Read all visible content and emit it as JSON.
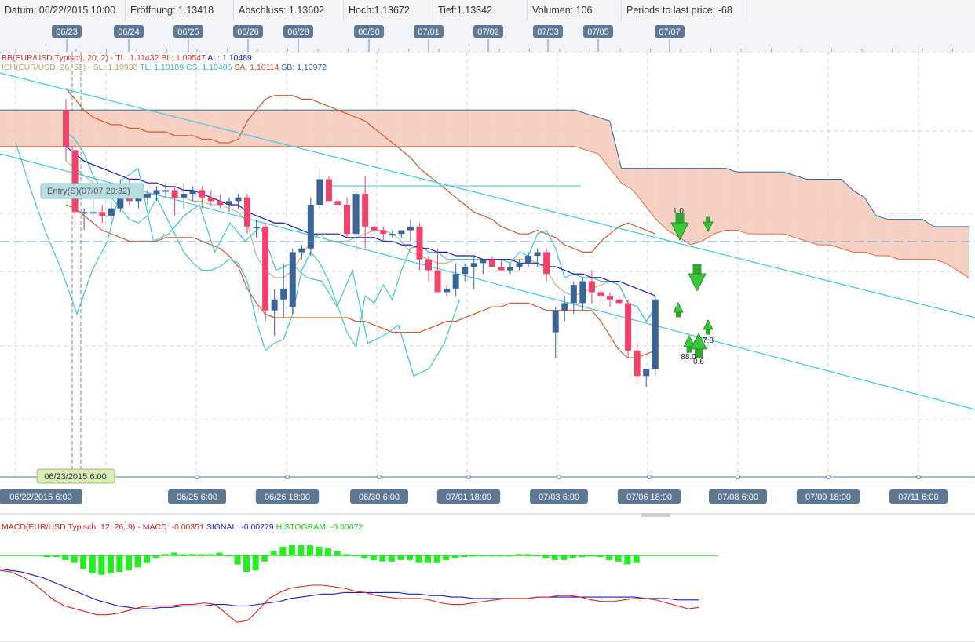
{
  "info": {
    "datum": "Datum: 06/22/2015 10:00",
    "open": "Eröffnung: 1.13418",
    "close": "Abschluss: 1.13602",
    "high": "Hoch:1.13672",
    "low": "Tief:1.13342",
    "volume": "Volumen: 106",
    "periods": "Periods to last price: -68"
  },
  "colors": {
    "bull": "#3a6496",
    "bear": "#f0426a",
    "bb": "#d05a28",
    "sma": "#1a1ab8",
    "cyan": "#3fc6cf",
    "khaki": "#c8b48a",
    "channel": "#3cc8e8",
    "macd": "#e02020",
    "signal": "#1a1ac8",
    "hist": "#22ee22",
    "cloud_red": "#f4c8b8",
    "cloud_blue": "#bcdcee"
  },
  "top_dates": [
    "06/23",
    "06/24",
    "06/25",
    "06/26",
    "06/28",
    "06/30",
    "07/01",
    "07/02",
    "07/03",
    "07/05",
    "07/07"
  ],
  "bottom_dates": [
    "06/22/2015 6:00",
    "06/25 6:00",
    "06/26 18:00",
    "06/30 6:00",
    "07/01 18:00",
    "07/03 6:00",
    "07/06 18:00",
    "07/08 6:00",
    "07/09 18:00",
    "07/11 6:00"
  ],
  "cursor_label": "06/23/2015 6:00",
  "entry_label": "Entry(S)(07/07 20:32)",
  "legend": {
    "bb": {
      "part1": "BB(EUR/USD.Typisch, 20, 2) - TL: 1.11432 BL: 1.09547",
      "part2": "AL: 1.10489"
    },
    "ich": {
      "part1": "ICH(EUR/USD, 26, 52) - SL: 1.10938",
      "part2": "TL: 1.10189",
      "part3": "CS: 1.10406",
      "part4": "SA: 1.10114",
      "part5": "SB: 1.10972"
    },
    "macd": {
      "part1": "MACD(EUR/USD.Typisch, 12, 26, 9) - MACD: -0.00351",
      "part2": "SIGNAL: -0.00279",
      "part3": "HISTOGRAM: -0.00072"
    }
  },
  "signal_labels": [
    "1.0",
    "88.0",
    "0.6",
    "7.8"
  ],
  "chart_data": {
    "type": "candlestick",
    "candles": [
      {
        "o": 1.134,
        "h": 1.137,
        "l": 1.12,
        "c": 1.124
      },
      {
        "o": 1.123,
        "h": 1.125,
        "l": 1.102,
        "c": 1.106
      },
      {
        "o": 1.106,
        "h": 1.107,
        "l": 1.101,
        "c": 1.106
      },
      {
        "o": 1.106,
        "h": 1.11,
        "l": 1.104,
        "c": 1.106
      },
      {
        "o": 1.106,
        "h": 1.108,
        "l": 1.103,
        "c": 1.105
      },
      {
        "o": 1.105,
        "h": 1.109,
        "l": 1.104,
        "c": 1.107
      },
      {
        "o": 1.107,
        "h": 1.115,
        "l": 1.106,
        "c": 1.113
      },
      {
        "o": 1.113,
        "h": 1.115,
        "l": 1.108,
        "c": 1.109
      },
      {
        "o": 1.109,
        "h": 1.112,
        "l": 1.107,
        "c": 1.11
      },
      {
        "o": 1.11,
        "h": 1.112,
        "l": 1.108,
        "c": 1.111
      },
      {
        "o": 1.111,
        "h": 1.113,
        "l": 1.109,
        "c": 1.112
      },
      {
        "o": 1.112,
        "h": 1.114,
        "l": 1.11,
        "c": 1.112
      },
      {
        "o": 1.112,
        "h": 1.113,
        "l": 1.105,
        "c": 1.11
      },
      {
        "o": 1.11,
        "h": 1.114,
        "l": 1.107,
        "c": 1.111
      },
      {
        "o": 1.111,
        "h": 1.113,
        "l": 1.109,
        "c": 1.112
      },
      {
        "o": 1.112,
        "h": 1.113,
        "l": 1.107,
        "c": 1.11
      },
      {
        "o": 1.11,
        "h": 1.112,
        "l": 1.108,
        "c": 1.109
      },
      {
        "o": 1.109,
        "h": 1.111,
        "l": 1.107,
        "c": 1.108
      },
      {
        "o": 1.108,
        "h": 1.11,
        "l": 1.106,
        "c": 1.109
      },
      {
        "o": 1.109,
        "h": 1.111,
        "l": 1.107,
        "c": 1.11
      },
      {
        "o": 1.11,
        "h": 1.111,
        "l": 1.1,
        "c": 1.102
      },
      {
        "o": 1.102,
        "h": 1.104,
        "l": 1.099,
        "c": 1.102
      },
      {
        "o": 1.102,
        "h": 1.103,
        "l": 1.076,
        "c": 1.079
      },
      {
        "o": 1.079,
        "h": 1.085,
        "l": 1.072,
        "c": 1.082
      },
      {
        "o": 1.082,
        "h": 1.092,
        "l": 1.077,
        "c": 1.085
      },
      {
        "o": 1.08,
        "h": 1.096,
        "l": 1.078,
        "c": 1.095
      },
      {
        "o": 1.095,
        "h": 1.097,
        "l": 1.093,
        "c": 1.096
      },
      {
        "o": 1.096,
        "h": 1.11,
        "l": 1.094,
        "c": 1.108
      },
      {
        "o": 1.108,
        "h": 1.118,
        "l": 1.107,
        "c": 1.115
      },
      {
        "o": 1.115,
        "h": 1.116,
        "l": 1.109,
        "c": 1.109
      },
      {
        "o": 1.109,
        "h": 1.11,
        "l": 1.106,
        "c": 1.108
      },
      {
        "o": 1.108,
        "h": 1.11,
        "l": 1.099,
        "c": 1.1
      },
      {
        "o": 1.1,
        "h": 1.112,
        "l": 1.095,
        "c": 1.111
      },
      {
        "o": 1.111,
        "h": 1.116,
        "l": 1.096,
        "c": 1.102
      },
      {
        "o": 1.102,
        "h": 1.103,
        "l": 1.1,
        "c": 1.101
      },
      {
        "o": 1.101,
        "h": 1.102,
        "l": 1.098,
        "c": 1.1
      },
      {
        "o": 1.1,
        "h": 1.101,
        "l": 1.099,
        "c": 1.1
      },
      {
        "o": 1.1,
        "h": 1.101,
        "l": 1.099,
        "c": 1.101
      },
      {
        "o": 1.101,
        "h": 1.104,
        "l": 1.098,
        "c": 1.102
      },
      {
        "o": 1.102,
        "h": 1.103,
        "l": 1.09,
        "c": 1.093
      },
      {
        "o": 1.093,
        "h": 1.094,
        "l": 1.087,
        "c": 1.09
      },
      {
        "o": 1.09,
        "h": 1.096,
        "l": 1.085,
        "c": 1.084
      },
      {
        "o": 1.084,
        "h": 1.086,
        "l": 1.083,
        "c": 1.085
      },
      {
        "o": 1.085,
        "h": 1.092,
        "l": 1.083,
        "c": 1.089
      },
      {
        "o": 1.089,
        "h": 1.092,
        "l": 1.087,
        "c": 1.091
      },
      {
        "o": 1.091,
        "h": 1.094,
        "l": 1.085,
        "c": 1.092
      },
      {
        "o": 1.092,
        "h": 1.093,
        "l": 1.089,
        "c": 1.093
      },
      {
        "o": 1.093,
        "h": 1.094,
        "l": 1.091,
        "c": 1.091
      },
      {
        "o": 1.091,
        "h": 1.093,
        "l": 1.09,
        "c": 1.09
      },
      {
        "o": 1.09,
        "h": 1.092,
        "l": 1.089,
        "c": 1.091
      },
      {
        "o": 1.091,
        "h": 1.093,
        "l": 1.09,
        "c": 1.092
      },
      {
        "o": 1.092,
        "h": 1.095,
        "l": 1.091,
        "c": 1.094
      },
      {
        "o": 1.094,
        "h": 1.096,
        "l": 1.091,
        "c": 1.095
      },
      {
        "o": 1.095,
        "h": 1.096,
        "l": 1.087,
        "c": 1.089
      },
      {
        "o": 1.073,
        "h": 1.08,
        "l": 1.066,
        "c": 1.079
      },
      {
        "o": 1.079,
        "h": 1.083,
        "l": 1.076,
        "c": 1.081
      },
      {
        "o": 1.081,
        "h": 1.087,
        "l": 1.078,
        "c": 1.086
      },
      {
        "o": 1.081,
        "h": 1.088,
        "l": 1.079,
        "c": 1.087
      },
      {
        "o": 1.087,
        "h": 1.09,
        "l": 1.081,
        "c": 1.084
      },
      {
        "o": 1.084,
        "h": 1.085,
        "l": 1.081,
        "c": 1.083
      },
      {
        "o": 1.083,
        "h": 1.084,
        "l": 1.08,
        "c": 1.082
      },
      {
        "o": 1.082,
        "h": 1.083,
        "l": 1.08,
        "c": 1.081
      },
      {
        "o": 1.081,
        "h": 1.082,
        "l": 1.066,
        "c": 1.068
      },
      {
        "o": 1.068,
        "h": 1.07,
        "l": 1.059,
        "c": 1.061
      },
      {
        "o": 1.061,
        "h": 1.063,
        "l": 1.058,
        "c": 1.063
      },
      {
        "o": 1.063,
        "h": 1.083,
        "l": 1.061,
        "c": 1.082
      }
    ],
    "sma": [
      1.124,
      1.122,
      1.12,
      1.119,
      1.118,
      1.117,
      1.116,
      1.115,
      1.115,
      1.114,
      1.114,
      1.113,
      1.113,
      1.112,
      1.112,
      1.111,
      1.11,
      1.109,
      1.108,
      1.108,
      1.106,
      1.105,
      1.104,
      1.103,
      1.103,
      1.102,
      1.101,
      1.1,
      1.1,
      1.1,
      1.1,
      1.099,
      1.099,
      1.099,
      1.099,
      1.098,
      1.098,
      1.097,
      1.097,
      1.096,
      1.096,
      1.095,
      1.095,
      1.094,
      1.094,
      1.094,
      1.093,
      1.093,
      1.093,
      1.093,
      1.092,
      1.092,
      1.092,
      1.091,
      1.091,
      1.09,
      1.089,
      1.089,
      1.088,
      1.088,
      1.087,
      1.087,
      1.086,
      1.085,
      1.084,
      1.083
    ],
    "bb_upper": [
      1.14,
      1.137,
      1.134,
      1.132,
      1.131,
      1.13,
      1.13,
      1.129,
      1.129,
      1.128,
      1.128,
      1.128,
      1.127,
      1.127,
      1.127,
      1.126,
      1.126,
      1.125,
      1.125,
      1.126,
      1.131,
      1.134,
      1.137,
      1.138,
      1.138,
      1.138,
      1.137,
      1.137,
      1.136,
      1.135,
      1.134,
      1.133,
      1.132,
      1.131,
      1.129,
      1.127,
      1.125,
      1.123,
      1.121,
      1.118,
      1.116,
      1.114,
      1.112,
      1.11,
      1.108,
      1.106,
      1.105,
      1.104,
      1.102,
      1.101,
      1.1,
      1.1,
      1.101,
      1.1,
      1.099,
      1.097,
      1.096,
      1.095,
      1.095,
      1.098,
      1.1,
      1.102,
      1.103,
      1.102,
      1.101,
      1.1
    ],
    "bb_lower": [
      1.108,
      1.107,
      1.105,
      1.103,
      1.101,
      1.1,
      1.099,
      1.098,
      1.098,
      1.098,
      1.098,
      1.099,
      1.099,
      1.099,
      1.099,
      1.098,
      1.097,
      1.096,
      1.094,
      1.091,
      1.085,
      1.081,
      1.078,
      1.077,
      1.077,
      1.077,
      1.077,
      1.077,
      1.077,
      1.077,
      1.077,
      1.077,
      1.076,
      1.076,
      1.075,
      1.074,
      1.073,
      1.073,
      1.073,
      1.073,
      1.074,
      1.075,
      1.076,
      1.076,
      1.077,
      1.078,
      1.079,
      1.08,
      1.08,
      1.081,
      1.081,
      1.081,
      1.08,
      1.079,
      1.079,
      1.079,
      1.079,
      1.079,
      1.079,
      1.076,
      1.072,
      1.068,
      1.066,
      1.066,
      1.067,
      1.068
    ],
    "tenkan": [
      1.12,
      1.118,
      1.116,
      1.114,
      1.112,
      1.11,
      1.11,
      1.11,
      1.111,
      1.111,
      1.111,
      1.11,
      1.11,
      1.11,
      1.109,
      1.109,
      1.108,
      1.108,
      1.107,
      1.106,
      1.103,
      1.094,
      1.09,
      1.088,
      1.088,
      1.09,
      1.094,
      1.098,
      1.1,
      1.098,
      1.098,
      1.098,
      1.099,
      1.1,
      1.101,
      1.101,
      1.1,
      1.098,
      1.095,
      1.094,
      1.093,
      1.092,
      1.092,
      1.093,
      1.093,
      1.093,
      1.093,
      1.093,
      1.093,
      1.093,
      1.093,
      1.093,
      1.092,
      1.09,
      1.086,
      1.084,
      1.083,
      1.084,
      1.085,
      1.086,
      1.087,
      1.086,
      1.081,
      1.08,
      1.076,
      1.079
    ],
    "kijun": [
      1.128,
      1.126,
      1.122,
      1.116,
      1.112,
      1.11,
      1.107,
      1.104,
      1.103,
      1.105,
      1.11,
      1.105,
      1.1,
      1.095,
      1.092,
      1.09,
      1.09,
      1.091,
      1.093,
      1.092,
      1.087,
      1.076,
      1.068,
      1.07,
      1.071,
      1.078,
      1.09,
      1.095,
      1.092,
      1.087,
      1.08,
      1.073,
      1.069,
      1.083,
      1.081,
      1.086,
      1.082,
      1.09,
      1.096,
      1.097,
      1.095,
      1.095,
      1.093,
      1.093,
      1.093,
      1.093,
      1.093,
      1.093,
      1.093,
      1.092,
      1.095,
      1.094,
      1.1,
      1.101,
      1.096,
      1.088,
      1.089,
      1.088,
      1.088,
      1.087,
      1.087,
      1.086,
      1.081,
      1.08,
      1.076,
      1.08
    ],
    "cloud_a": [
      1.124,
      1.124,
      1.124,
      1.124,
      1.124,
      1.124,
      1.124,
      1.124,
      1.124,
      1.124,
      1.124,
      1.124,
      1.124,
      1.124,
      1.124,
      1.124,
      1.124,
      1.124,
      1.124,
      1.124,
      1.124,
      1.124,
      1.124,
      1.124,
      1.124,
      1.124,
      1.124,
      1.124,
      1.124,
      1.124,
      1.124,
      1.124,
      1.124,
      1.124,
      1.124,
      1.124,
      1.124,
      1.124,
      1.124,
      1.124,
      1.124,
      1.124,
      1.124,
      1.124,
      1.124,
      1.124,
      1.124,
      1.124,
      1.124,
      1.124,
      1.124,
      1.123,
      1.122,
      1.118,
      1.114,
      1.112,
      1.108,
      1.104,
      1.101,
      1.099,
      1.097,
      1.098,
      1.1,
      1.101,
      1.101,
      1.1,
      1.1,
      1.1,
      1.1,
      1.099,
      1.098,
      1.097,
      1.097,
      1.096,
      1.095,
      1.095,
      1.094,
      1.094,
      1.093,
      1.093,
      1.093,
      1.093,
      1.092,
      1.09,
      1.088
    ],
    "cloud_b": [
      1.134,
      1.134,
      1.134,
      1.134,
      1.134,
      1.134,
      1.134,
      1.134,
      1.134,
      1.134,
      1.134,
      1.134,
      1.134,
      1.134,
      1.134,
      1.134,
      1.134,
      1.134,
      1.134,
      1.134,
      1.134,
      1.134,
      1.134,
      1.134,
      1.134,
      1.134,
      1.134,
      1.134,
      1.134,
      1.134,
      1.134,
      1.134,
      1.134,
      1.134,
      1.134,
      1.134,
      1.134,
      1.134,
      1.134,
      1.134,
      1.134,
      1.134,
      1.134,
      1.134,
      1.134,
      1.134,
      1.134,
      1.134,
      1.134,
      1.134,
      1.134,
      1.133,
      1.132,
      1.131,
      1.118,
      1.118,
      1.118,
      1.118,
      1.118,
      1.118,
      1.118,
      1.118,
      1.118,
      1.118,
      1.117,
      1.117,
      1.117,
      1.117,
      1.117,
      1.116,
      1.115,
      1.115,
      1.115,
      1.115,
      1.112,
      1.11,
      1.105,
      1.104,
      1.104,
      1.104,
      1.104,
      1.102,
      1.102,
      1.102,
      1.102
    ],
    "chikou": [
      1.125,
      1.112,
      1.1,
      1.09,
      1.078,
      1.09,
      1.098,
      1.115,
      1.118,
      1.098,
      1.1,
      1.105,
      1.108,
      1.095,
      1.103,
      1.098,
      1.102,
      1.09,
      1.092,
      1.088,
      1.087,
      1.08,
      1.09,
      1.07,
      1.072,
      1.075,
      1.061,
      1.063,
      1.07,
      1.082
    ],
    "channel_upper": [
      [
        0,
        1.125
      ],
      [
        1242,
        1.06
      ]
    ],
    "channel_lower": [
      [
        0,
        1.112
      ],
      [
        1242,
        1.028
      ]
    ],
    "macd": [
      -0.001,
      -0.0011,
      -0.0014,
      -0.0018,
      -0.0024,
      -0.003,
      -0.0034,
      -0.0036,
      -0.0038,
      -0.004,
      -0.004,
      -0.0039,
      -0.0037,
      -0.0035,
      -0.0034,
      -0.0034,
      -0.0034,
      -0.0033,
      -0.0033,
      -0.0032,
      -0.0033,
      -0.0039,
      -0.0045,
      -0.0044,
      -0.0037,
      -0.0029,
      -0.0025,
      -0.0022,
      -0.0021,
      -0.002,
      -0.002,
      -0.0021,
      -0.0022,
      -0.0024,
      -0.0025,
      -0.0027,
      -0.0028,
      -0.0029,
      -0.0029,
      -0.0029,
      -0.003,
      -0.0032,
      -0.0033,
      -0.0033,
      -0.0032,
      -0.0031,
      -0.003,
      -0.0029,
      -0.0029,
      -0.0029,
      -0.0028,
      -0.0028,
      -0.0027,
      -0.0027,
      -0.0028,
      -0.003,
      -0.0031,
      -0.0031,
      -0.003,
      -0.0029,
      -0.0029,
      -0.003,
      -0.0032,
      -0.0034,
      -0.0036,
      -0.0035
    ],
    "signal": [
      -0.0009,
      -0.001,
      -0.0011,
      -0.0013,
      -0.0015,
      -0.0018,
      -0.0021,
      -0.0024,
      -0.0027,
      -0.003,
      -0.0032,
      -0.0034,
      -0.0035,
      -0.0036,
      -0.0036,
      -0.0035,
      -0.0035,
      -0.0034,
      -0.0034,
      -0.0034,
      -0.0033,
      -0.0033,
      -0.0034,
      -0.0034,
      -0.0033,
      -0.0032,
      -0.0031,
      -0.0029,
      -0.0028,
      -0.0027,
      -0.0026,
      -0.0026,
      -0.0025,
      -0.0025,
      -0.0025,
      -0.0025,
      -0.0025,
      -0.0025,
      -0.0026,
      -0.0026,
      -0.0027,
      -0.0027,
      -0.0028,
      -0.0028,
      -0.0029,
      -0.0029,
      -0.0029,
      -0.0029,
      -0.0029,
      -0.0029,
      -0.0028,
      -0.0028,
      -0.0028,
      -0.0028,
      -0.0028,
      -0.0028,
      -0.0028,
      -0.0028,
      -0.0028,
      -0.0028,
      -0.0029,
      -0.0029,
      -0.0029,
      -0.003,
      -0.003,
      -0.003
    ],
    "histogram": [
      -0.0001,
      -0.0001,
      -0.0003,
      -0.0005,
      -0.0009,
      -0.0012,
      -0.0013,
      -0.0012,
      -0.0011,
      -0.001,
      -0.0008,
      -0.0005,
      -0.0002,
      0.0001,
      0.0002,
      0.0001,
      0.0001,
      0.0001,
      0.0001,
      0.0002,
      0.0,
      -0.0006,
      -0.0011,
      -0.001,
      -0.0004,
      0.0003,
      0.0006,
      0.0007,
      0.0007,
      0.0007,
      0.0006,
      0.0005,
      0.0003,
      0.0001,
      0.0,
      -0.0002,
      -0.0003,
      -0.0004,
      -0.0004,
      -0.0003,
      -0.0003,
      -0.0005,
      -0.0005,
      -0.0005,
      -0.0003,
      -0.0002,
      -0.0001,
      0.0,
      0.0,
      0.0,
      0.0,
      0.0,
      0.0001,
      0.0001,
      0.0,
      -0.0002,
      -0.0003,
      -0.0003,
      -0.0002,
      -0.0001,
      0.0,
      -0.0001,
      -0.0003,
      -0.0004,
      -0.0006,
      -0.0005
    ],
    "ylim": [
      1.035,
      1.15
    ],
    "macd_ylim": [
      -0.0055,
      0.0015
    ]
  }
}
